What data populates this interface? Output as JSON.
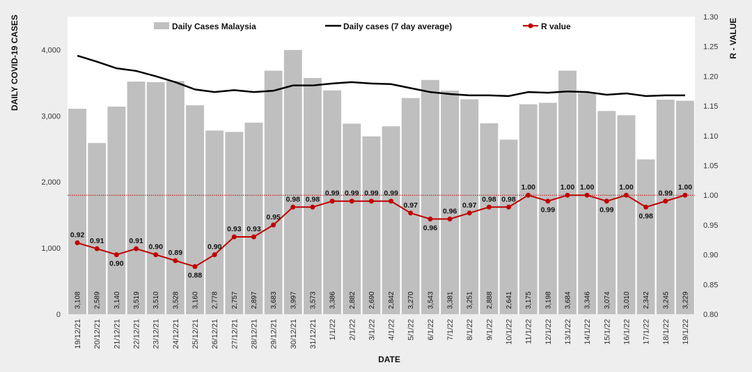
{
  "chart_data": {
    "type": "bar+line",
    "categories": [
      "19/12/21",
      "20/12/21",
      "21/12/21",
      "22/12/21",
      "23/12/21",
      "24/12/21",
      "25/12/21",
      "26/12/21",
      "27/12/21",
      "28/12/21",
      "29/12/21",
      "30/12/21",
      "31/12/21",
      "1/1/22",
      "2/1/22",
      "3/1/22",
      "4/1/22",
      "5/1/22",
      "6/1/22",
      "7/1/22",
      "8/1/22",
      "9/1/22",
      "10/1/22",
      "11/1/22",
      "12/1/22",
      "13/1/22",
      "14/1/22",
      "15/1/22",
      "16/1/22",
      "17/1/22",
      "18/1/22",
      "19/1/22"
    ],
    "series": [
      {
        "name": "Daily Cases Malaysia",
        "kind": "bar",
        "axis": "left",
        "color": "#bfbfbf",
        "values": [
          3108,
          2589,
          3140,
          3519,
          3510,
          3528,
          3160,
          2778,
          2757,
          2897,
          3683,
          3997,
          3573,
          3386,
          2882,
          2690,
          2842,
          3270,
          3543,
          3381,
          3251,
          2888,
          2641,
          3175,
          3198,
          3684,
          3346,
          3074,
          3010,
          2342,
          3245,
          3229
        ],
        "labels": [
          "3,108",
          "2,589",
          "3,140",
          "3,519",
          "3,510",
          "3,528",
          "3,160",
          "2,778",
          "2,757",
          "2,897",
          "3,683",
          "3,997",
          "3,573",
          "3,386",
          "2,882",
          "2,690",
          "2,842",
          "3,270",
          "3,543",
          "3,381",
          "3,251",
          "2,888",
          "2,641",
          "3,175",
          "3,198",
          "3,684",
          "3,346",
          "3,074",
          "3,010",
          "2,342",
          "3,245",
          "3,229"
        ]
      },
      {
        "name": "Daily cases (7 day average)",
        "kind": "line",
        "axis": "left",
        "color": "#000000",
        "values": [
          3910,
          3820,
          3720,
          3680,
          3600,
          3510,
          3400,
          3360,
          3390,
          3360,
          3380,
          3460,
          3460,
          3490,
          3510,
          3490,
          3480,
          3420,
          3360,
          3330,
          3310,
          3310,
          3300,
          3360,
          3350,
          3370,
          3360,
          3320,
          3340,
          3300,
          3310,
          3310
        ]
      },
      {
        "name": "R value",
        "kind": "line",
        "axis": "right",
        "color": "#c00000",
        "values": [
          0.92,
          0.91,
          0.9,
          0.91,
          0.9,
          0.89,
          0.88,
          0.9,
          0.93,
          0.93,
          0.95,
          0.98,
          0.98,
          0.99,
          0.99,
          0.99,
          0.99,
          0.97,
          0.96,
          0.96,
          0.97,
          0.98,
          0.98,
          1.0,
          0.99,
          1.0,
          1.0,
          0.99,
          1.0,
          0.98,
          0.99,
          1.0
        ],
        "labels": [
          "0.92",
          "0.91",
          "0.90",
          "0.91",
          "0.90",
          "0.89",
          "0.88",
          "0.90",
          "0.93",
          "0.93",
          "0.95",
          "0.98",
          "0.98",
          "0.99",
          "0.99",
          "0.99",
          "0.99",
          "0.97",
          "0.96",
          "0.96",
          "0.97",
          "0.98",
          "0.98",
          "1.00",
          "0.99",
          "1.00",
          "1.00",
          "0.99",
          "1.00",
          "0.98",
          "0.99",
          "1.00"
        ]
      }
    ],
    "reference_line": {
      "axis": "right",
      "value": 1.0,
      "color": "#c00000",
      "style": "dotted"
    },
    "xlabel": "DATE",
    "ylabel_left": "DAILY COVID-19 CASES",
    "ylabel_right": "R - VALUE",
    "ylim_left": [
      0,
      4500
    ],
    "yticks_left": [
      0,
      1000,
      2000,
      3000,
      4000
    ],
    "yticks_left_labels": [
      "0",
      "1,000",
      "2,000",
      "3,000",
      "4,000"
    ],
    "ylim_right": [
      0.8,
      1.3
    ],
    "yticks_right": [
      0.8,
      0.85,
      0.9,
      0.95,
      1.0,
      1.05,
      1.1,
      1.15,
      1.2,
      1.25,
      1.3
    ],
    "yticks_right_labels": [
      "0.80",
      "0.85",
      "0.90",
      "0.95",
      "1.00",
      "1.05",
      "1.10",
      "1.15",
      "1.20",
      "1.25",
      "1.30"
    ],
    "legend_position": "top",
    "background": "#eeeeee"
  }
}
